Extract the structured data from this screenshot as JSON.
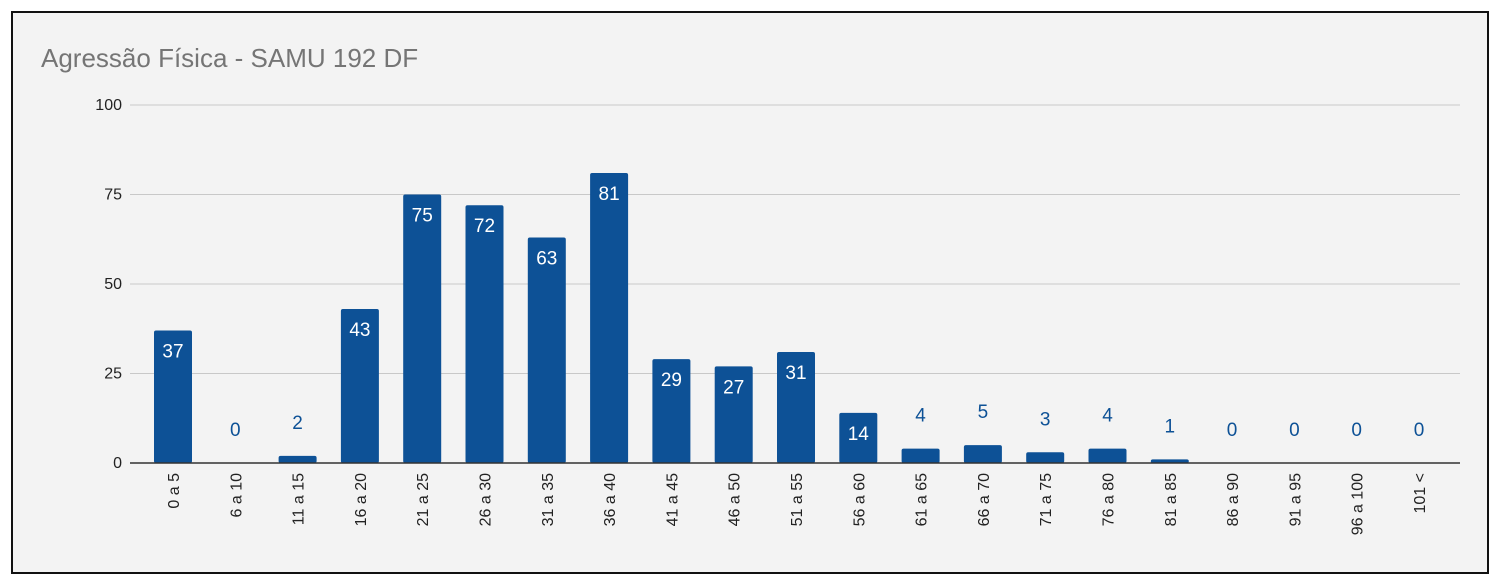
{
  "chart_data": {
    "type": "bar",
    "title": "Agressão Física - SAMU 192 DF",
    "categories": [
      "0 a 5",
      "6 a 10",
      "11 a 15",
      "16 a 20",
      "21 a 25",
      "26 a 30",
      "31 a 35",
      "36 a 40",
      "41 a 45",
      "46 a 50",
      "51 a 55",
      "56 a 60",
      "61 a 65",
      "66 a 70",
      "71 a 75",
      "76 a 80",
      "81 a 85",
      "86 a 90",
      "91 a 95",
      "96 a 100",
      "101 <"
    ],
    "values": [
      37,
      0,
      2,
      43,
      75,
      72,
      63,
      81,
      29,
      27,
      31,
      14,
      4,
      5,
      3,
      4,
      1,
      0,
      0,
      0,
      0
    ],
    "ylim": [
      0,
      100
    ],
    "yticks": [
      0,
      25,
      50,
      75,
      100
    ],
    "xlabel": "",
    "ylabel": "",
    "grid": true,
    "bar_color": "#0d5196",
    "label_inside_color": "#ffffff",
    "label_outside_color": "#0d5196"
  }
}
